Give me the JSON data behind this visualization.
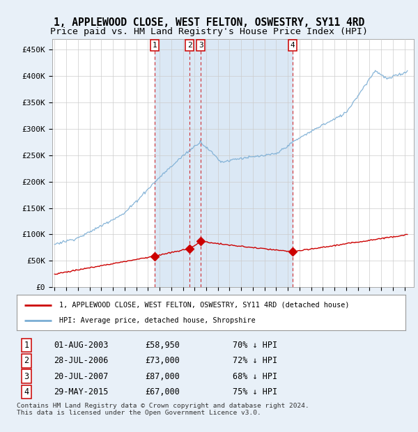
{
  "title": "1, APPLEWOOD CLOSE, WEST FELTON, OSWESTRY, SY11 4RD",
  "subtitle": "Price paid vs. HM Land Registry's House Price Index (HPI)",
  "ylim": [
    0,
    470000
  ],
  "xlim_start": 1994.8,
  "xlim_end": 2025.8,
  "background_color": "#e8f0f8",
  "plot_bg_color": "#ffffff",
  "shade_color": "#dbe8f5",
  "hpi_color": "#7aadd4",
  "price_color": "#cc0000",
  "sale_dates": [
    2003.58,
    2006.57,
    2007.54,
    2015.41
  ],
  "sale_prices": [
    58950,
    73000,
    87000,
    67000
  ],
  "sale_labels": [
    "1",
    "2",
    "3",
    "4"
  ],
  "legend_label_price": "1, APPLEWOOD CLOSE, WEST FELTON, OSWESTRY, SY11 4RD (detached house)",
  "legend_label_hpi": "HPI: Average price, detached house, Shropshire",
  "table_rows": [
    [
      "1",
      "01-AUG-2003",
      "£58,950",
      "70% ↓ HPI"
    ],
    [
      "2",
      "28-JUL-2006",
      "£73,000",
      "72% ↓ HPI"
    ],
    [
      "3",
      "20-JUL-2007",
      "£87,000",
      "68% ↓ HPI"
    ],
    [
      "4",
      "29-MAY-2015",
      "£67,000",
      "75% ↓ HPI"
    ]
  ],
  "footnote": "Contains HM Land Registry data © Crown copyright and database right 2024.\nThis data is licensed under the Open Government Licence v3.0.",
  "title_fontsize": 10.5,
  "subtitle_fontsize": 9.5
}
